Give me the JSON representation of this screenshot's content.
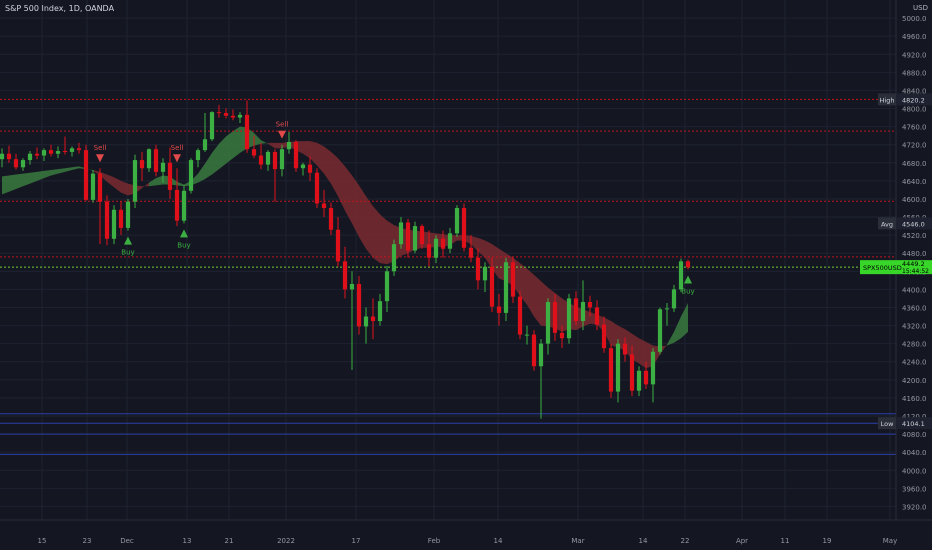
{
  "header": {
    "symbol_title": "S&P 500 Index, 1D, OANDA",
    "currency": "USD"
  },
  "chart_data": {
    "type": "candlestick",
    "x_ticks": [
      "15",
      "23",
      "Dec",
      "13",
      "21",
      "2022",
      "17",
      "Feb",
      "14",
      "Mar",
      "14",
      "22",
      "Apr",
      "11",
      "19",
      "May"
    ],
    "y_ticks": [
      5000.0,
      4960.0,
      4920.0,
      4880.0,
      4840.0,
      4800.0,
      4760.0,
      4720.0,
      4680.0,
      4640.0,
      4600.0,
      4560.0,
      4520.0,
      4480.0,
      4440.0,
      4400.0,
      4360.0,
      4320.0,
      4280.0,
      4240.0,
      4200.0,
      4160.0,
      4120.0,
      4080.0,
      4040.0,
      4000.0,
      3960.0,
      3920.0
    ],
    "ylim": [
      3890,
      5040
    ],
    "grid": true,
    "candles": [
      {
        "o": 4688,
        "h": 4712,
        "l": 4670,
        "c": 4700
      },
      {
        "o": 4700,
        "h": 4718,
        "l": 4680,
        "c": 4688
      },
      {
        "o": 4688,
        "h": 4700,
        "l": 4665,
        "c": 4670
      },
      {
        "o": 4670,
        "h": 4690,
        "l": 4662,
        "c": 4686
      },
      {
        "o": 4686,
        "h": 4706,
        "l": 4676,
        "c": 4700
      },
      {
        "o": 4700,
        "h": 4714,
        "l": 4688,
        "c": 4696
      },
      {
        "o": 4696,
        "h": 4712,
        "l": 4684,
        "c": 4708
      },
      {
        "o": 4708,
        "h": 4720,
        "l": 4694,
        "c": 4700
      },
      {
        "o": 4700,
        "h": 4716,
        "l": 4690,
        "c": 4706
      },
      {
        "o": 4706,
        "h": 4738,
        "l": 4698,
        "c": 4704
      },
      {
        "o": 4704,
        "h": 4716,
        "l": 4694,
        "c": 4712
      },
      {
        "o": 4712,
        "h": 4724,
        "l": 4700,
        "c": 4708
      },
      {
        "o": 4708,
        "h": 4720,
        "l": 4596,
        "c": 4598
      },
      {
        "o": 4598,
        "h": 4664,
        "l": 4592,
        "c": 4656
      },
      {
        "o": 4656,
        "h": 4668,
        "l": 4500,
        "c": 4594
      },
      {
        "o": 4594,
        "h": 4608,
        "l": 4498,
        "c": 4512
      },
      {
        "o": 4512,
        "h": 4586,
        "l": 4500,
        "c": 4576
      },
      {
        "o": 4576,
        "h": 4594,
        "l": 4520,
        "c": 4536
      },
      {
        "o": 4536,
        "h": 4600,
        "l": 4530,
        "c": 4594
      },
      {
        "o": 4594,
        "h": 4698,
        "l": 4580,
        "c": 4686
      },
      {
        "o": 4686,
        "h": 4704,
        "l": 4640,
        "c": 4668
      },
      {
        "o": 4668,
        "h": 4712,
        "l": 4660,
        "c": 4710
      },
      {
        "o": 4710,
        "h": 4720,
        "l": 4650,
        "c": 4660
      },
      {
        "o": 4660,
        "h": 4690,
        "l": 4636,
        "c": 4680
      },
      {
        "o": 4680,
        "h": 4714,
        "l": 4600,
        "c": 4620
      },
      {
        "o": 4620,
        "h": 4668,
        "l": 4540,
        "c": 4552
      },
      {
        "o": 4552,
        "h": 4630,
        "l": 4546,
        "c": 4618
      },
      {
        "o": 4618,
        "h": 4690,
        "l": 4612,
        "c": 4686
      },
      {
        "o": 4686,
        "h": 4712,
        "l": 4670,
        "c": 4708
      },
      {
        "o": 4708,
        "h": 4790,
        "l": 4704,
        "c": 4732
      },
      {
        "o": 4732,
        "h": 4794,
        "l": 4728,
        "c": 4792
      },
      {
        "o": 4792,
        "h": 4808,
        "l": 4780,
        "c": 4790
      },
      {
        "o": 4790,
        "h": 4800,
        "l": 4778,
        "c": 4784
      },
      {
        "o": 4784,
        "h": 4798,
        "l": 4774,
        "c": 4780
      },
      {
        "o": 4780,
        "h": 4792,
        "l": 4768,
        "c": 4786
      },
      {
        "o": 4786,
        "h": 4818,
        "l": 4702,
        "c": 4710
      },
      {
        "o": 4710,
        "h": 4740,
        "l": 4690,
        "c": 4696
      },
      {
        "o": 4696,
        "h": 4724,
        "l": 4666,
        "c": 4676
      },
      {
        "o": 4676,
        "h": 4708,
        "l": 4662,
        "c": 4704
      },
      {
        "o": 4704,
        "h": 4710,
        "l": 4594,
        "c": 4666
      },
      {
        "o": 4666,
        "h": 4720,
        "l": 4650,
        "c": 4710
      },
      {
        "o": 4710,
        "h": 4748,
        "l": 4700,
        "c": 4726
      },
      {
        "o": 4726,
        "h": 4730,
        "l": 4660,
        "c": 4668
      },
      {
        "o": 4668,
        "h": 4680,
        "l": 4652,
        "c": 4676
      },
      {
        "o": 4676,
        "h": 4694,
        "l": 4640,
        "c": 4658
      },
      {
        "o": 4658,
        "h": 4668,
        "l": 4580,
        "c": 4590
      },
      {
        "o": 4590,
        "h": 4620,
        "l": 4560,
        "c": 4580
      },
      {
        "o": 4580,
        "h": 4592,
        "l": 4520,
        "c": 4532
      },
      {
        "o": 4532,
        "h": 4560,
        "l": 4450,
        "c": 4462
      },
      {
        "o": 4462,
        "h": 4494,
        "l": 4380,
        "c": 4400
      },
      {
        "o": 4400,
        "h": 4440,
        "l": 4222,
        "c": 4412
      },
      {
        "o": 4412,
        "h": 4430,
        "l": 4300,
        "c": 4318
      },
      {
        "o": 4318,
        "h": 4360,
        "l": 4280,
        "c": 4340
      },
      {
        "o": 4340,
        "h": 4380,
        "l": 4290,
        "c": 4330
      },
      {
        "o": 4330,
        "h": 4390,
        "l": 4320,
        "c": 4374
      },
      {
        "o": 4374,
        "h": 4452,
        "l": 4350,
        "c": 4440
      },
      {
        "o": 4440,
        "h": 4510,
        "l": 4430,
        "c": 4500
      },
      {
        "o": 4500,
        "h": 4560,
        "l": 4490,
        "c": 4548
      },
      {
        "o": 4548,
        "h": 4556,
        "l": 4470,
        "c": 4486
      },
      {
        "o": 4486,
        "h": 4550,
        "l": 4480,
        "c": 4540
      },
      {
        "o": 4540,
        "h": 4544,
        "l": 4490,
        "c": 4500
      },
      {
        "o": 4500,
        "h": 4530,
        "l": 4450,
        "c": 4470
      },
      {
        "o": 4470,
        "h": 4520,
        "l": 4458,
        "c": 4512
      },
      {
        "o": 4512,
        "h": 4530,
        "l": 4470,
        "c": 4490
      },
      {
        "o": 4490,
        "h": 4536,
        "l": 4480,
        "c": 4524
      },
      {
        "o": 4524,
        "h": 4586,
        "l": 4516,
        "c": 4580
      },
      {
        "o": 4580,
        "h": 4590,
        "l": 4484,
        "c": 4492
      },
      {
        "o": 4492,
        "h": 4520,
        "l": 4460,
        "c": 4470
      },
      {
        "o": 4470,
        "h": 4490,
        "l": 4400,
        "c": 4420
      },
      {
        "o": 4420,
        "h": 4460,
        "l": 4394,
        "c": 4450
      },
      {
        "o": 4450,
        "h": 4470,
        "l": 4350,
        "c": 4362
      },
      {
        "o": 4362,
        "h": 4390,
        "l": 4320,
        "c": 4348
      },
      {
        "o": 4348,
        "h": 4470,
        "l": 4330,
        "c": 4460
      },
      {
        "o": 4460,
        "h": 4472,
        "l": 4370,
        "c": 4384
      },
      {
        "o": 4384,
        "h": 4396,
        "l": 4290,
        "c": 4300
      },
      {
        "o": 4300,
        "h": 4320,
        "l": 4278,
        "c": 4300
      },
      {
        "o": 4300,
        "h": 4310,
        "l": 4220,
        "c": 4230
      },
      {
        "o": 4230,
        "h": 4290,
        "l": 4114,
        "c": 4280
      },
      {
        "o": 4280,
        "h": 4380,
        "l": 4256,
        "c": 4372
      },
      {
        "o": 4372,
        "h": 4390,
        "l": 4286,
        "c": 4304
      },
      {
        "o": 4304,
        "h": 4320,
        "l": 4270,
        "c": 4292
      },
      {
        "o": 4292,
        "h": 4390,
        "l": 4280,
        "c": 4380
      },
      {
        "o": 4380,
        "h": 4396,
        "l": 4320,
        "c": 4330
      },
      {
        "o": 4330,
        "h": 4420,
        "l": 4310,
        "c": 4372
      },
      {
        "o": 4372,
        "h": 4386,
        "l": 4340,
        "c": 4360
      },
      {
        "o": 4360,
        "h": 4376,
        "l": 4310,
        "c": 4322
      },
      {
        "o": 4322,
        "h": 4340,
        "l": 4260,
        "c": 4270
      },
      {
        "o": 4270,
        "h": 4280,
        "l": 4160,
        "c": 4174
      },
      {
        "o": 4174,
        "h": 4290,
        "l": 4150,
        "c": 4280
      },
      {
        "o": 4280,
        "h": 4294,
        "l": 4240,
        "c": 4256
      },
      {
        "o": 4256,
        "h": 4276,
        "l": 4164,
        "c": 4176
      },
      {
        "o": 4176,
        "h": 4230,
        "l": 4164,
        "c": 4220
      },
      {
        "o": 4220,
        "h": 4240,
        "l": 4180,
        "c": 4190
      },
      {
        "o": 4190,
        "h": 4270,
        "l": 4150,
        "c": 4262
      },
      {
        "o": 4262,
        "h": 4360,
        "l": 4256,
        "c": 4356
      },
      {
        "o": 4356,
        "h": 4370,
        "l": 4320,
        "c": 4358
      },
      {
        "o": 4358,
        "h": 4410,
        "l": 4350,
        "c": 4400
      },
      {
        "o": 4400,
        "h": 4468,
        "l": 4394,
        "c": 4462
      },
      {
        "o": 4462,
        "h": 4466,
        "l": 4444,
        "c": 4449
      }
    ],
    "band": {
      "fast": [
        4650,
        4652,
        4654,
        4656,
        4658,
        4660,
        4662,
        4664,
        4666,
        4668,
        4670,
        4672,
        4668,
        4662,
        4652,
        4638,
        4626,
        4614,
        4608,
        4612,
        4624,
        4636,
        4646,
        4652,
        4650,
        4638,
        4632,
        4640,
        4656,
        4678,
        4702,
        4722,
        4738,
        4750,
        4760,
        4758,
        4746,
        4730,
        4722,
        4712,
        4712,
        4716,
        4708,
        4700,
        4690,
        4674,
        4656,
        4634,
        4606,
        4574,
        4546,
        4516,
        4490,
        4470,
        4458,
        4456,
        4462,
        4474,
        4480,
        4488,
        4492,
        4492,
        4494,
        4494,
        4498,
        4508,
        4508,
        4500,
        4484,
        4470,
        4446,
        4424,
        4418,
        4408,
        4386,
        4366,
        4340,
        4320,
        4318,
        4314,
        4306,
        4312,
        4310,
        4318,
        4324,
        4322,
        4306,
        4276,
        4272,
        4264,
        4246,
        4236,
        4226,
        4230,
        4256,
        4278,
        4306,
        4340,
        4370
      ],
      "slow": [
        4610,
        4616,
        4622,
        4628,
        4634,
        4640,
        4646,
        4652,
        4656,
        4660,
        4664,
        4668,
        4666,
        4664,
        4660,
        4654,
        4648,
        4640,
        4634,
        4630,
        4628,
        4628,
        4630,
        4632,
        4632,
        4630,
        4628,
        4630,
        4636,
        4644,
        4654,
        4666,
        4678,
        4690,
        4702,
        4712,
        4718,
        4722,
        4724,
        4724,
        4724,
        4726,
        4728,
        4728,
        4728,
        4724,
        4716,
        4704,
        4690,
        4672,
        4652,
        4630,
        4606,
        4584,
        4566,
        4552,
        4542,
        4536,
        4532,
        4530,
        4528,
        4526,
        4524,
        4522,
        4520,
        4520,
        4520,
        4518,
        4514,
        4508,
        4500,
        4490,
        4480,
        4470,
        4458,
        4446,
        4432,
        4418,
        4404,
        4392,
        4380,
        4370,
        4362,
        4356,
        4350,
        4344,
        4338,
        4330,
        4320,
        4312,
        4302,
        4292,
        4284,
        4276,
        4274,
        4276,
        4282,
        4292,
        4306
      ]
    },
    "horizontal_lines": [
      {
        "value": 4820.2,
        "label": "High"
      },
      {
        "value": 4750.0,
        "label": ""
      },
      {
        "value": 4595.0,
        "label": ""
      },
      {
        "value": 4546.0,
        "label": "Avg"
      },
      {
        "value": 4472.0,
        "label": ""
      },
      {
        "value": 4449.2,
        "label": ""
      },
      {
        "value": 4104.1,
        "label": "Low"
      },
      {
        "value": 4125.0,
        "label": ""
      },
      {
        "value": 4080.0,
        "label": ""
      },
      {
        "value": 4035.0,
        "label": ""
      }
    ],
    "price_tags": [
      {
        "label": "High",
        "value": "4820.2",
        "y": 4820.2,
        "color": "#2a2e39",
        "text": "#d1d4dc"
      },
      {
        "label": "Avg",
        "value": "4546.0",
        "y": 4546.0,
        "color": "#2a2e39",
        "text": "#d1d4dc"
      },
      {
        "label": "SPX500USD",
        "value": "4449.2",
        "sub": "15:44:52",
        "y": 4449.2,
        "color": "#37d629",
        "text": "#000000"
      },
      {
        "label": "Low",
        "value": "4104.1",
        "y": 4104.1,
        "color": "#2a2e39",
        "text": "#d1d4dc"
      }
    ],
    "signals": [
      {
        "type": "sell",
        "label": "Sell",
        "bar": 14
      },
      {
        "type": "buy",
        "label": "Buy",
        "bar": 18
      },
      {
        "type": "sell",
        "label": "Sell",
        "bar": 25
      },
      {
        "type": "buy",
        "label": "Buy",
        "bar": 26
      },
      {
        "type": "sell",
        "label": "Sell",
        "bar": 40
      },
      {
        "type": "buy",
        "label": "Buy",
        "bar": 98
      }
    ]
  },
  "colors": {
    "background": "#141722",
    "grid": "#1e2230",
    "up": "#3cb043",
    "down": "#e0101a",
    "band_up": "#3a7a40",
    "band_down": "#7a2a30",
    "line_red": "#c2141c",
    "line_green": "#6fcf3a",
    "line_blue": "#2c3fa8",
    "axis_text": "#9598a1",
    "sell": "#e04a4a",
    "buy": "#3cb043"
  }
}
